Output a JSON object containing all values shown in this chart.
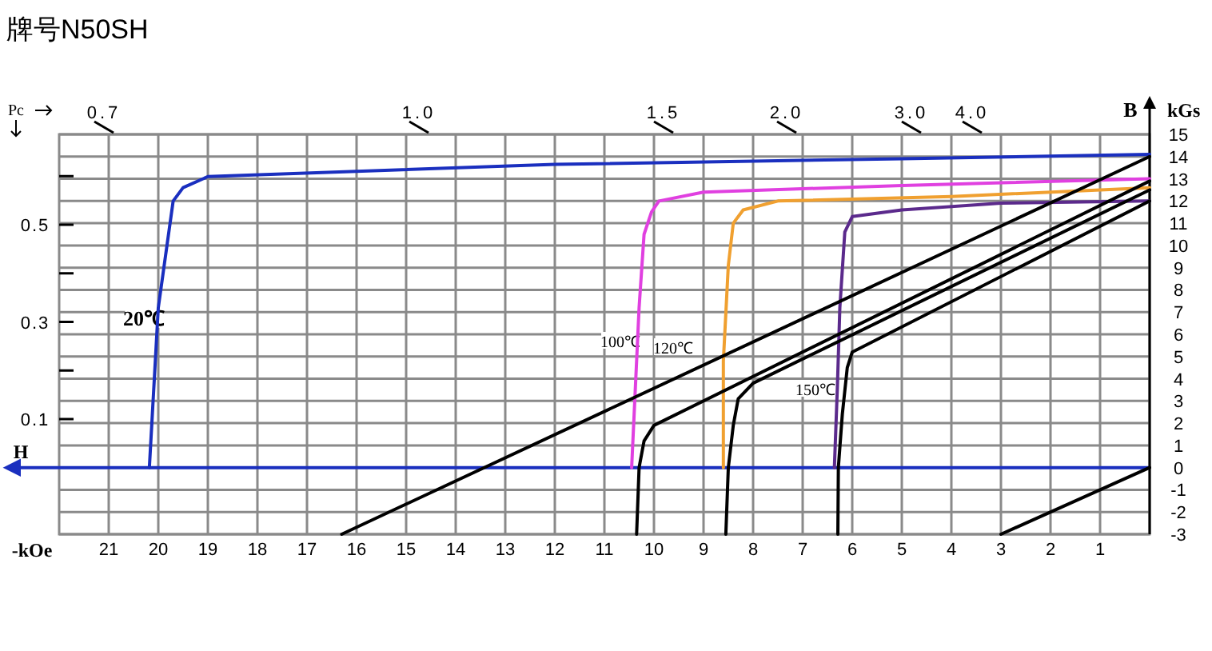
{
  "chart_data": {
    "type": "line",
    "title": "牌号N50SH",
    "xlabel": "H",
    "ylabel": "B",
    "y2label": "Pc",
    "xlim": [
      22,
      0
    ],
    "xticks": [
      21,
      20,
      19,
      18,
      17,
      16,
      15,
      14,
      13,
      12,
      11,
      10,
      9,
      8,
      7,
      6,
      5,
      4,
      3,
      2,
      1
    ],
    "ylim": [
      -3,
      15
    ],
    "yticks": [
      -3,
      -2,
      -1,
      0,
      1,
      2,
      3,
      4,
      5,
      6,
      7,
      8,
      9,
      10,
      11,
      12,
      13,
      14,
      15
    ],
    "y2lim": [
      -0.137,
      0.686
    ],
    "y2ticks": [
      0.1,
      {
        "value": 0.2,
        "label": null
      },
      0.3,
      {
        "value": 0.4,
        "label": null
      },
      0.5,
      {
        "value": 0.6,
        "label": null
      }
    ],
    "grid": true,
    "marker": "none",
    "ref_lines": [
      {
        "axis": "y",
        "value": 0,
        "color": "#1a2fbf"
      }
    ],
    "series": [
      {
        "color": "#1a2fbf",
        "x": [
          0,
          5,
          12,
          19,
          19.5,
          19.7,
          19.85,
          20.0,
          20.18
        ],
        "values": [
          14.1,
          13.9,
          13.65,
          13.1,
          12.6,
          12.0,
          9.6,
          7.2,
          0
        ]
      },
      {
        "color": "#e040e0",
        "x": [
          0,
          5,
          9,
          9.9,
          10.05,
          10.2,
          10.3,
          10.4,
          10.45
        ],
        "values": [
          13.0,
          12.7,
          12.4,
          12.0,
          11.5,
          10.5,
          7.2,
          2.4,
          0
        ]
      },
      {
        "color": "#f0a030",
        "x": [
          0,
          4,
          7.5,
          8.2,
          8.4,
          8.5,
          8.6,
          8.6
        ],
        "values": [
          12.6,
          12.2,
          12.0,
          11.6,
          11.0,
          9.1,
          4.8,
          0
        ]
      },
      {
        "color": "#5b2a8c",
        "x": [
          0,
          3,
          5,
          6.0,
          6.15,
          6.25,
          6.3,
          6.36
        ],
        "values": [
          12.0,
          11.9,
          11.6,
          11.3,
          10.6,
          7.2,
          3.6,
          0
        ]
      },
      {
        "color": "#000000",
        "x": [
          0,
          16.3
        ],
        "values": [
          14.0,
          -3
        ]
      },
      {
        "color": "#000000",
        "x": [
          0,
          10.0,
          10.2,
          10.3,
          10.35
        ],
        "values": [
          12.9,
          1.9,
          1.2,
          0,
          -3
        ]
      },
      {
        "color": "#000000",
        "x": [
          0,
          8.0,
          8.3,
          8.4,
          8.5,
          8.55
        ],
        "values": [
          12.5,
          3.8,
          3.1,
          1.9,
          0,
          -3
        ]
      },
      {
        "color": "#000000",
        "x": [
          0,
          6.0,
          6.1,
          6.2,
          6.28,
          6.29
        ],
        "values": [
          12.0,
          5.2,
          4.5,
          2.4,
          0,
          -3
        ]
      },
      {
        "color": "#000000",
        "x": [
          0,
          3
        ],
        "values": [
          0,
          -3
        ]
      }
    ],
    "annotations": [
      "0.7",
      "1.0",
      "1.5",
      "2.0",
      "3.0",
      "4.0",
      "20℃",
      "100℃",
      "120℃",
      "150℃",
      "kGs",
      "-kOe"
    ]
  }
}
